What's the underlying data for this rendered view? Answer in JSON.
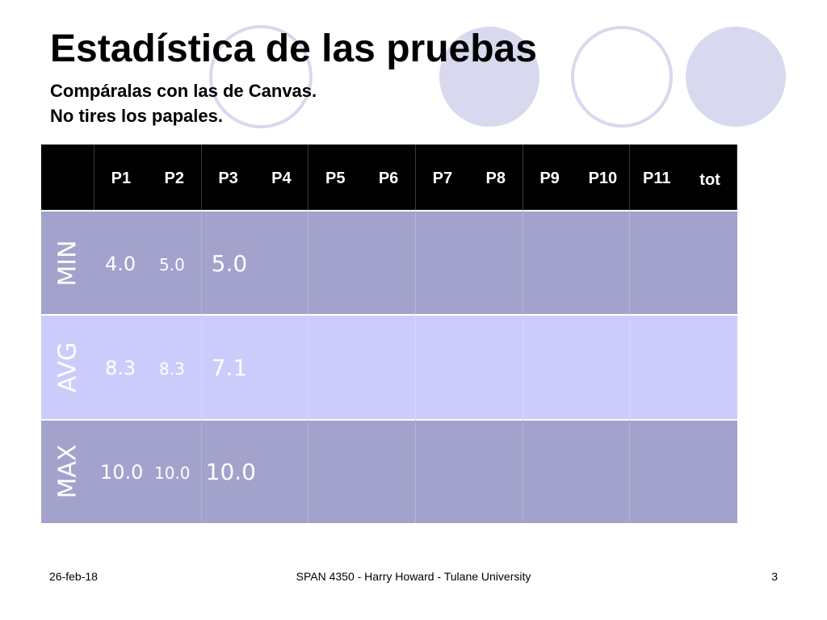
{
  "slide": {
    "title": "Estadística de las pruebas",
    "subtitle_lines": [
      "Compáralas con las de Canvas.",
      "No tires los papales."
    ]
  },
  "table": {
    "headers": [
      "P1",
      "P2",
      "P3",
      "P4",
      "P5",
      "P6",
      "P7",
      "P8",
      "P9",
      "P10",
      "P11",
      "tot"
    ],
    "rows": [
      {
        "label": "MIN",
        "values": [
          "4.0",
          "5.0",
          "5.0"
        ]
      },
      {
        "label": "AVG",
        "values": [
          "8.3",
          "8.3",
          "7.1"
        ]
      },
      {
        "label": "MAX",
        "values": [
          "10.0",
          "10.0",
          "10.0"
        ]
      }
    ]
  },
  "footer": {
    "date": "26-feb-18",
    "course": "SPAN 4350 - Harry Howard - Tulane University",
    "page_number": "3"
  },
  "colors": {
    "header_bg": "#000000",
    "row_min_max_bg": "#a2a2cc",
    "row_avg_bg": "#ccccfc",
    "circle_fill": "#d8d8ee",
    "circle_stroke": "#d8d8ee"
  }
}
